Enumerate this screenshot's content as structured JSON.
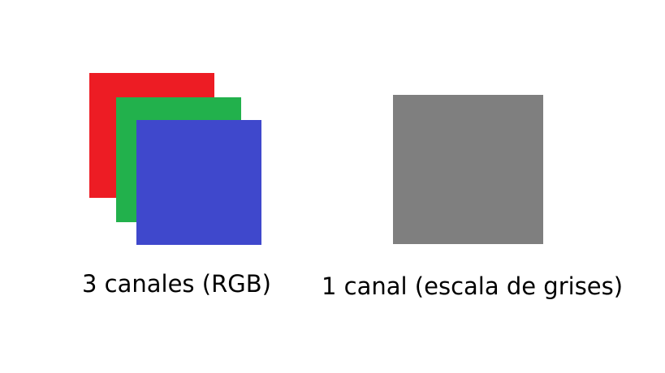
{
  "panels": {
    "rgb": {
      "caption": "3 canales (RGB)",
      "channel_colors": {
        "red": "#ed1c24",
        "green": "#22b14c",
        "blue": "#3f48cc"
      }
    },
    "grayscale": {
      "caption": "1 canal (escala de grises)",
      "channel_color": "#7f7f7f"
    }
  }
}
